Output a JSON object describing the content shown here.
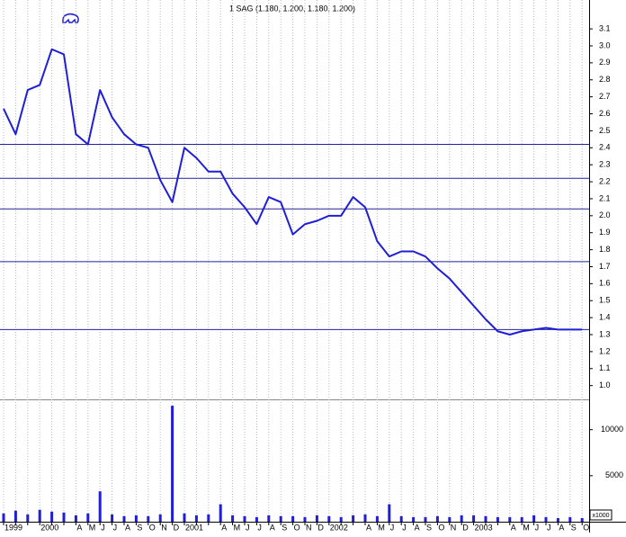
{
  "chart_data": [
    {
      "type": "line",
      "title": "1 SAG (1.180, 1.200, 1.180, 1.200)",
      "categories": [
        "1999",
        null,
        null,
        "2000",
        null,
        null,
        "A",
        "M",
        "J",
        "J",
        "A",
        "S",
        "O",
        "N",
        "D",
        "2001",
        null,
        null,
        "A",
        "M",
        "J",
        "J",
        "A",
        "S",
        "O",
        "N",
        "D",
        "2002",
        null,
        null,
        "A",
        "M",
        "J",
        "J",
        "A",
        "S",
        "O",
        "N",
        "D",
        "2003",
        null,
        null,
        "A",
        "M",
        "J",
        "J",
        "A",
        "S",
        "O"
      ],
      "values": [
        2.63,
        2.48,
        2.74,
        2.77,
        2.98,
        2.95,
        2.48,
        2.42,
        2.74,
        2.58,
        2.48,
        2.42,
        2.4,
        2.21,
        2.08,
        2.4,
        2.34,
        2.26,
        2.26,
        2.13,
        2.05,
        1.95,
        2.11,
        2.08,
        1.89,
        1.95,
        1.97,
        2.0,
        2.0,
        2.11,
        2.05,
        1.85,
        1.76,
        1.79,
        1.79,
        1.76,
        1.69,
        1.63,
        1.55,
        1.47,
        1.39,
        1.32,
        1.3,
        1.32,
        1.33,
        1.34,
        1.33,
        1.33,
        1.33
      ],
      "color": "#1f1fd6",
      "levels": [
        2.42,
        2.22,
        2.04,
        1.73,
        1.33
      ],
      "level_color": "#22229a",
      "ylim": [
        0.94,
        3.27
      ],
      "yticks": [
        3.1,
        {
          "value": 3,
          "label": "3.0"
        },
        2.9,
        2.8,
        2.7,
        2.6,
        2.5,
        2.4,
        2.3,
        2.2,
        2.1,
        {
          "value": 2,
          "label": "2.0"
        },
        1.9,
        1.8,
        1.7,
        1.6,
        1.5,
        1.4,
        1.3,
        1.2,
        1.1,
        {
          "value": 1,
          "label": "1.0"
        }
      ],
      "grid": true
    },
    {
      "type": "bar",
      "unit_label": "x1000",
      "values": [
        900,
        1200,
        800,
        1300,
        1100,
        1000,
        700,
        900,
        3300,
        800,
        600,
        700,
        600,
        800,
        12600,
        900,
        700,
        800,
        1900,
        700,
        600,
        500,
        700,
        600,
        600,
        500,
        700,
        600,
        500,
        700,
        800,
        600,
        1900,
        600,
        500,
        500,
        600,
        500,
        700,
        700,
        600,
        500,
        500,
        500,
        700,
        500,
        400,
        500,
        400
      ],
      "color": "#1f1fd6",
      "ylim": [
        0,
        13000
      ],
      "yticks": [
        5000,
        10000
      ]
    }
  ]
}
